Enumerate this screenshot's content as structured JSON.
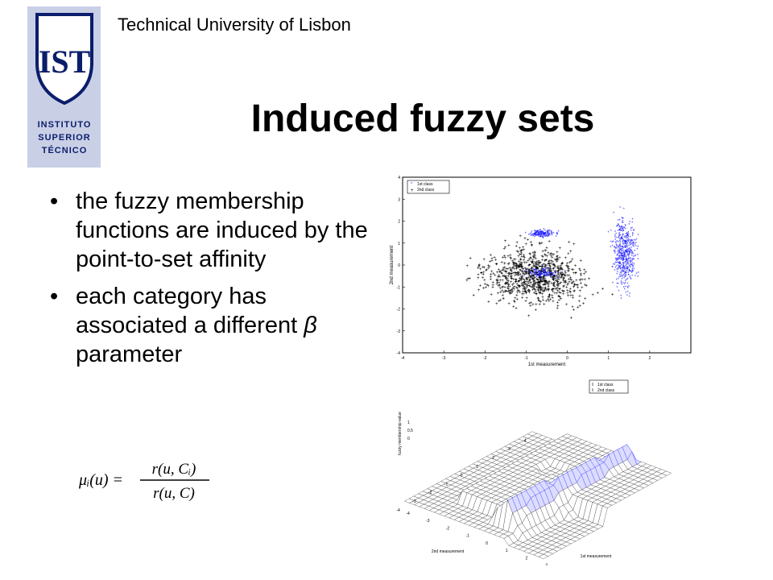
{
  "header": {
    "institution": "Technical University of Lisbon"
  },
  "logo": {
    "lines": [
      "INSTITUTO",
      "SUPERIOR",
      "TÉCNICO"
    ],
    "monogram": "IST"
  },
  "slide": {
    "title": "Induced fuzzy sets",
    "bullets": [
      {
        "text": "the fuzzy membership functions are induced by the point-to-set affinity",
        "emphasis": ""
      },
      {
        "text": "each category has associated a different",
        "emphasis": "β",
        "suffix": " parameter"
      }
    ],
    "formula": {
      "lhs": "μᵢ(u) =",
      "numerator": "r(u, Cᵢ)",
      "denominator": "r(u, C)"
    }
  },
  "chart_data": [
    {
      "type": "scatter",
      "xlabel": "1st measurement",
      "ylabel": "2nd measurement",
      "xticks": [
        "-4",
        "-3",
        "-2",
        "-1",
        "0",
        "1",
        "2"
      ],
      "yticks": [
        "-4",
        "-3",
        "-2",
        "-1",
        "0",
        "1",
        "2",
        "3",
        "4"
      ],
      "xlim": [
        -4,
        3
      ],
      "ylim": [
        -4,
        4
      ],
      "legend": [
        "1st class",
        "2nd class"
      ],
      "legend_position": "top-left",
      "series_colors": [
        "#1a1aff",
        "#000000"
      ]
    },
    {
      "type": "surface",
      "xlabel": "1st measurement",
      "ylabel": "2nd measurement",
      "zlabel": "fuzzy membership value",
      "xticks": [
        "-4",
        "-3",
        "-2",
        "-1",
        "0",
        "1",
        "2",
        "3"
      ],
      "yticks": [
        "-4",
        "-3",
        "-2",
        "-1",
        "0",
        "1",
        "2",
        "3",
        "4"
      ],
      "zticks": [
        "0",
        "0.5",
        "1"
      ],
      "legend": [
        "1st class",
        "2nd class"
      ],
      "legend_position": "top-right"
    }
  ]
}
